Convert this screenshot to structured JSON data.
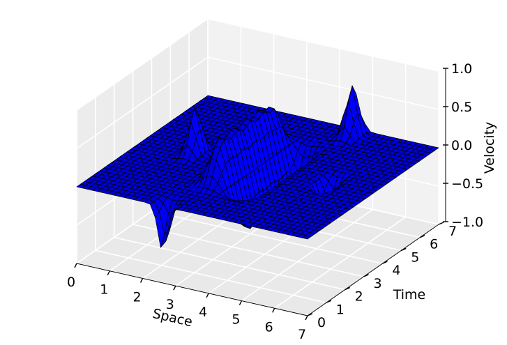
{
  "chart_data": {
    "type": "surface3d",
    "title": "",
    "xlabel": "Space",
    "ylabel": "Time",
    "zlabel": "Velocity",
    "xlim": [
      0,
      7
    ],
    "ylim": [
      0,
      7
    ],
    "zlim": [
      -1.0,
      1.0
    ],
    "x_ticks": [
      0,
      1,
      2,
      3,
      4,
      5,
      6,
      7
    ],
    "y_ticks": [
      0,
      1,
      2,
      3,
      4,
      5,
      6,
      7
    ],
    "z_ticks": [
      -1.0,
      -0.5,
      0.0,
      0.5,
      1.0
    ],
    "x_tick_labels": [
      "0",
      "1",
      "2",
      "3",
      "4",
      "5",
      "6",
      "7"
    ],
    "y_tick_labels": [
      "0",
      "1",
      "2",
      "3",
      "4",
      "5",
      "6",
      "7"
    ],
    "z_tick_labels": [
      "−1.0",
      "−0.5",
      "0.0",
      "0.5",
      "1.0"
    ],
    "surface_color": "#0000ff",
    "edge_color": "#000000",
    "grid": true,
    "description_of_data": {
      "plateaus": [
        {
          "space_center": 3.1,
          "time_center": 3.5,
          "velocity": 0.55
        },
        {
          "space_center": 3.9,
          "time_center": 3.5,
          "velocity": -0.55
        }
      ],
      "spikes": [
        {
          "space": 1.6,
          "time": 3.5,
          "velocity": 0.9
        },
        {
          "space": 2.6,
          "time": 0.0,
          "velocity": -0.9
        },
        {
          "space": 4.6,
          "time": 6.6,
          "velocity": 1.0
        },
        {
          "space": 5.6,
          "time": 3.5,
          "velocity": -0.85
        }
      ]
    }
  }
}
